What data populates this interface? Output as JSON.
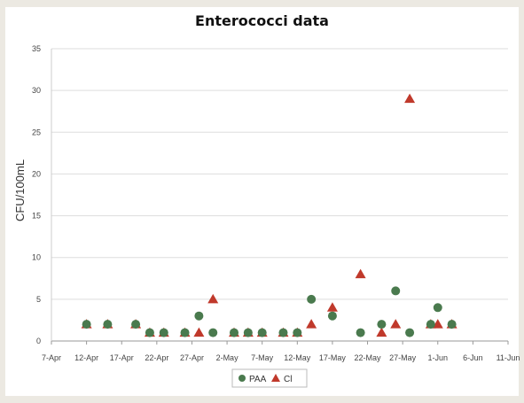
{
  "chart_data": {
    "type": "scatter",
    "title": "Enterococci data",
    "xlabel": "",
    "ylabel": "CFU/100mL",
    "ylim": [
      0,
      35
    ],
    "yticks": [
      0,
      5,
      10,
      15,
      20,
      25,
      30,
      35
    ],
    "xlim": [
      "2021-04-07",
      "2021-06-11"
    ],
    "xticks": [
      {
        "date": "2021-04-07",
        "label": "7-Apr"
      },
      {
        "date": "2021-04-12",
        "label": "12-Apr"
      },
      {
        "date": "2021-04-17",
        "label": "17-Apr"
      },
      {
        "date": "2021-04-22",
        "label": "22-Apr"
      },
      {
        "date": "2021-04-27",
        "label": "27-Apr"
      },
      {
        "date": "2021-05-02",
        "label": "2-May"
      },
      {
        "date": "2021-05-07",
        "label": "7-May"
      },
      {
        "date": "2021-05-12",
        "label": "12-May"
      },
      {
        "date": "2021-05-17",
        "label": "17-May"
      },
      {
        "date": "2021-05-22",
        "label": "22-May"
      },
      {
        "date": "2021-05-27",
        "label": "27-May"
      },
      {
        "date": "2021-06-01",
        "label": "1-Jun"
      },
      {
        "date": "2021-06-06",
        "label": "6-Jun"
      },
      {
        "date": "2021-06-11",
        "label": "11-Jun"
      }
    ],
    "grid": true,
    "legend": "bottom",
    "series": [
      {
        "name": "PAA",
        "marker": "circle",
        "color": "#4a7a4e",
        "x": [
          "2021-04-12",
          "2021-04-15",
          "2021-04-19",
          "2021-04-21",
          "2021-04-23",
          "2021-04-26",
          "2021-04-28",
          "2021-04-30",
          "2021-05-03",
          "2021-05-05",
          "2021-05-07",
          "2021-05-10",
          "2021-05-12",
          "2021-05-14",
          "2021-05-17",
          "2021-05-21",
          "2021-05-24",
          "2021-05-26",
          "2021-05-28",
          "2021-05-31",
          "2021-06-01",
          "2021-06-03"
        ],
        "y": [
          2,
          2,
          2,
          1,
          1,
          1,
          3,
          1,
          1,
          1,
          1,
          1,
          1,
          5,
          3,
          1,
          2,
          6,
          1,
          2,
          4,
          2
        ]
      },
      {
        "name": "Cl",
        "marker": "triangle",
        "color": "#c0392b",
        "x": [
          "2021-04-12",
          "2021-04-15",
          "2021-04-19",
          "2021-04-21",
          "2021-04-23",
          "2021-04-26",
          "2021-04-28",
          "2021-04-30",
          "2021-05-03",
          "2021-05-05",
          "2021-05-07",
          "2021-05-10",
          "2021-05-12",
          "2021-05-14",
          "2021-05-17",
          "2021-05-21",
          "2021-05-24",
          "2021-05-26",
          "2021-05-28",
          "2021-05-31",
          "2021-06-01",
          "2021-06-03"
        ],
        "y": [
          2,
          2,
          2,
          1,
          1,
          1,
          1,
          5,
          1,
          1,
          1,
          1,
          1,
          2,
          4,
          8,
          1,
          2,
          29,
          2,
          2,
          2
        ]
      }
    ]
  }
}
